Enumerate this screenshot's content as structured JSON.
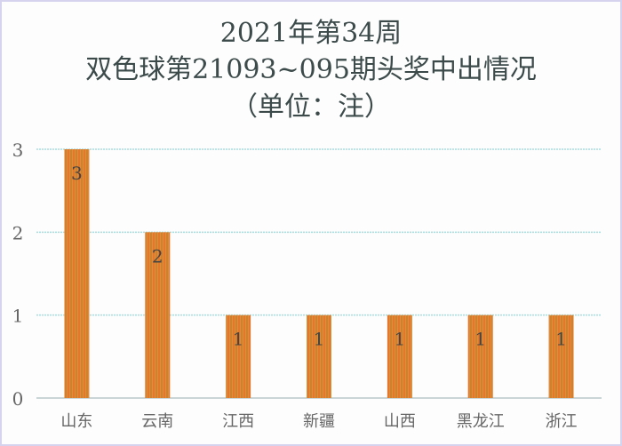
{
  "chart_data": {
    "type": "bar",
    "title_lines": [
      "2021年第34周",
      "双色球第21093~095期头奖中出情况",
      "（单位：注）"
    ],
    "categories": [
      "山东",
      "云南",
      "江西",
      "新疆",
      "山西",
      "黑龙江",
      "浙江"
    ],
    "values": [
      3,
      2,
      1,
      1,
      1,
      1,
      1
    ],
    "yticks": [
      0,
      1,
      2,
      3
    ],
    "ylim": [
      0,
      3
    ],
    "grid": true,
    "data_labels": true,
    "legend": "none",
    "colors": {
      "bar": "#e07a2a",
      "bar_stripe": "#c98a3a",
      "grid": "#a8dde0",
      "text": "#555555"
    }
  }
}
